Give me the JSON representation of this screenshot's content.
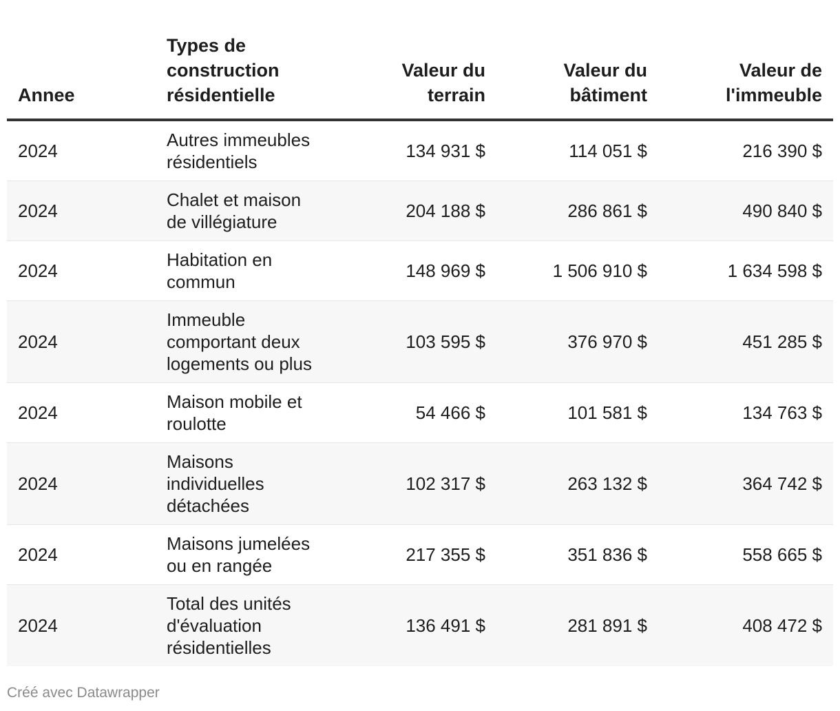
{
  "chart_data": {
    "type": "table",
    "columns": [
      "Annee",
      "Types de construction résidentielle",
      "Valeur du terrain",
      "Valeur du bâtiment",
      "Valeur de l'immeuble"
    ],
    "rows": [
      {
        "year": "2024",
        "type": "Autres immeubles résidentiels",
        "land": "134 931 $",
        "building": "114 051 $",
        "property": "216 390 $"
      },
      {
        "year": "2024",
        "type": "Chalet et maison de villégiature",
        "land": "204 188 $",
        "building": "286 861 $",
        "property": "490 840 $"
      },
      {
        "year": "2024",
        "type": "Habitation en commun",
        "land": "148 969 $",
        "building": "1 506 910 $",
        "property": "1 634 598 $"
      },
      {
        "year": "2024",
        "type": "Immeuble comportant deux logements ou plus",
        "land": "103 595 $",
        "building": "376 970 $",
        "property": "451 285 $"
      },
      {
        "year": "2024",
        "type": "Maison mobile et roulotte",
        "land": "54 466 $",
        "building": "101 581 $",
        "property": "134 763 $"
      },
      {
        "year": "2024",
        "type": "Maisons individuelles détachées",
        "land": "102 317 $",
        "building": "263 132 $",
        "property": "364 742 $"
      },
      {
        "year": "2024",
        "type": "Maisons jumelées ou en rangée",
        "land": "217 355 $",
        "building": "351 836 $",
        "property": "558 665 $"
      },
      {
        "year": "2024",
        "type": "Total des unités d'évaluation résidentielles",
        "land": "136 491 $",
        "building": "281 891 $",
        "property": "408 472 $"
      }
    ]
  },
  "footer": {
    "credit": "Créé avec Datawrapper"
  }
}
